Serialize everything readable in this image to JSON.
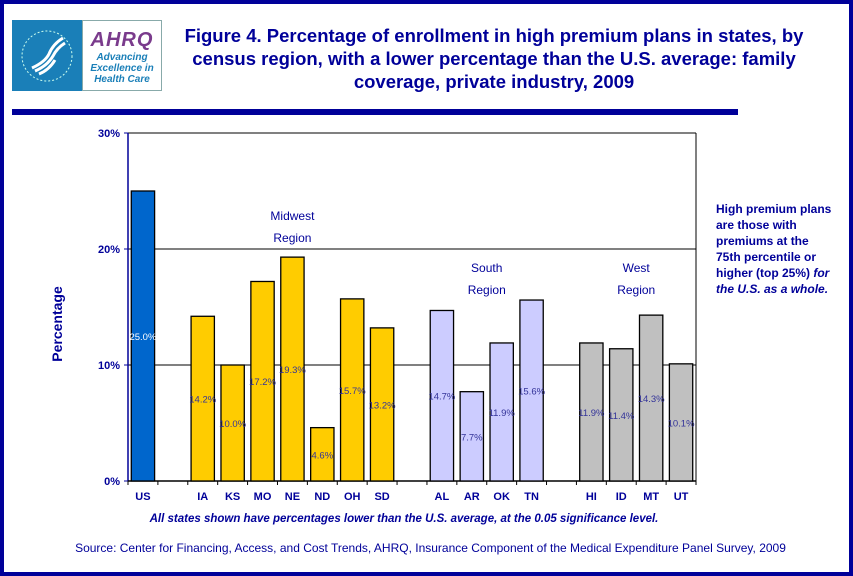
{
  "header": {
    "logo_text": "AHRQ Advancing Excellence in Health Care",
    "logo_brand": "AHRQ",
    "logo_tagline": [
      "Advancing",
      "Excellence in",
      "Health Care"
    ],
    "title": "Figure 4. Percentage of enrollment in high premium plans in states, by census region, with a lower percentage than the U.S. average: family coverage, private industry, 2009"
  },
  "side_note": {
    "normal": "High premium plans are those with premiums at the 75th percentile or higher (top 25%) ",
    "italic": "for the U.S. as a whole."
  },
  "footnote": "All states shown have percentages lower than the U.S. average, at the 0.05 significance level.",
  "source": "Source: Center for Financing, Access, and Cost Trends, AHRQ, Insurance Component of the Medical Expenditure Panel Survey, 2009",
  "chart_data": {
    "type": "bar",
    "ylabel": "Percentage",
    "ylim": [
      0,
      30
    ],
    "yticks": [
      "0%",
      "10%",
      "20%",
      "30%"
    ],
    "grid": true,
    "categories": [
      "US",
      "",
      "IA",
      "KS",
      "MO",
      "NE",
      "ND",
      "OH",
      "SD",
      "",
      "AL",
      "AR",
      "OK",
      "TN",
      "",
      "HI",
      "ID",
      "MT",
      "UT"
    ],
    "values": [
      25.0,
      null,
      14.2,
      10.0,
      17.2,
      19.3,
      4.6,
      15.7,
      13.2,
      null,
      14.7,
      7.7,
      11.9,
      15.6,
      null,
      11.9,
      11.4,
      14.3,
      10.1
    ],
    "data_labels": [
      "25.0%",
      "",
      "14.2%",
      "10.0%",
      "17.2%",
      "19.3%",
      "4.6%",
      "15.7%",
      "13.2%",
      "",
      "14.7%",
      "7.7%",
      "11.9%",
      "15.6%",
      "",
      "11.9%",
      "11.4%",
      "14.3%",
      "10.1%"
    ],
    "groups": [
      "US",
      "Midwest",
      "Midwest",
      "Midwest",
      "Midwest",
      "Midwest",
      "Midwest",
      "Midwest",
      "Midwest",
      "",
      "South",
      "South",
      "South",
      "South",
      "",
      "West",
      "West",
      "West",
      "West"
    ],
    "colors": {
      "US": "#0066cc",
      "Midwest": "#ffcc00",
      "South": "#ccccff",
      "West": "#c0c0c0"
    },
    "annotations": [
      {
        "lines": [
          "Midwest",
          "Region"
        ],
        "group": "Midwest"
      },
      {
        "lines": [
          "South",
          "Region"
        ],
        "group": "South"
      },
      {
        "lines": [
          "West",
          "Region"
        ],
        "group": "West"
      }
    ]
  }
}
